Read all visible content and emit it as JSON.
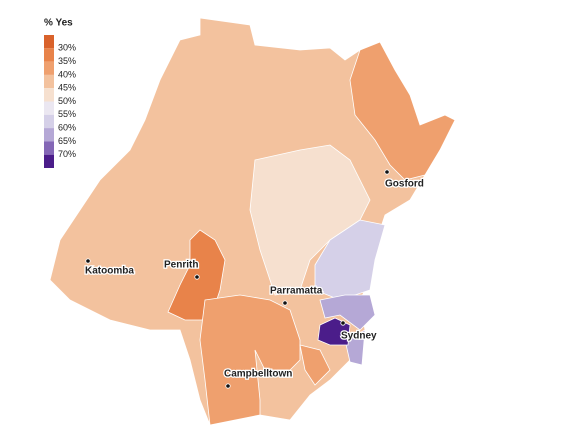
{
  "legend": {
    "title": "% Yes",
    "labels": [
      "30%",
      "35%",
      "40%",
      "45%",
      "50%",
      "55%",
      "60%",
      "65%",
      "70%"
    ]
  },
  "places": [
    {
      "label": "Katoomba"
    },
    {
      "label": "Penrith"
    },
    {
      "label": "Parramatta"
    },
    {
      "label": "Sydney"
    },
    {
      "label": "Gosford"
    },
    {
      "label": "Campbelltown"
    }
  ]
}
